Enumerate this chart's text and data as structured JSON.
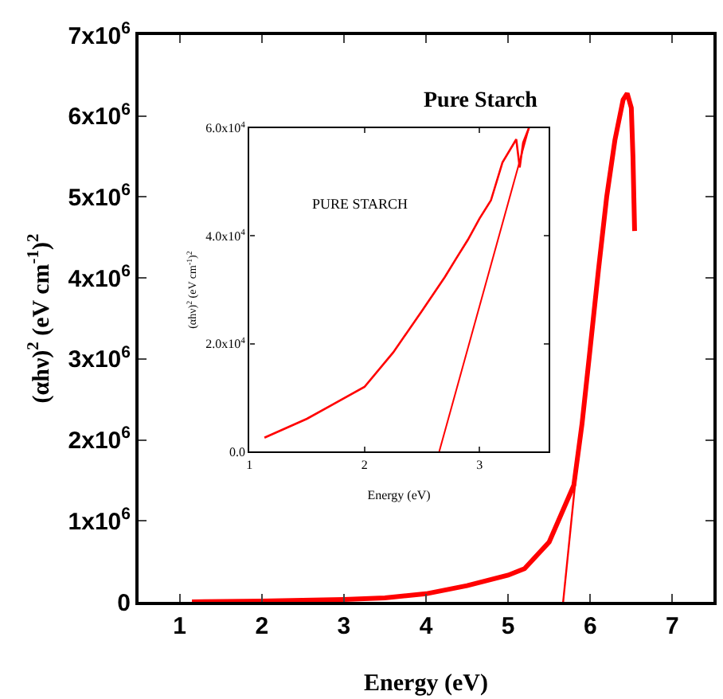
{
  "chart_data": [
    {
      "type": "line",
      "xlabel": "Energy (eV)",
      "ylabel": "(αhν)$^{2}$ (eV cm$^{-1}$)$^{2}$",
      "annotations": [
        "Pure Starch"
      ],
      "xlim": [
        0.5,
        7.5
      ],
      "ylim": [
        0,
        7000000
      ],
      "xticks": [
        1,
        2,
        3,
        4,
        5,
        6,
        7
      ],
      "yticks": [
        0,
        {
          "value": 1000000,
          "label": "1x10$^{6}$"
        },
        {
          "value": 2000000,
          "label": "2x10$^{6}$"
        },
        {
          "value": 3000000,
          "label": "3x10$^{6}$"
        },
        {
          "value": 4000000,
          "label": "4x10$^{6}$"
        },
        {
          "value": 5000000,
          "label": "5x10$^{6}$"
        },
        {
          "value": 6000000,
          "label": "6x10$^{6}$"
        },
        {
          "value": 7000000,
          "label": "7x10$^{6}$"
        }
      ],
      "marker": "none",
      "series": [
        {
          "color": "#ff0000",
          "x": [
            1.15,
            2,
            3,
            3.5,
            4,
            4.5,
            5,
            5.2,
            5.5,
            5.8,
            5.9,
            6.0,
            6.1,
            6.2,
            6.3,
            6.4,
            6.45,
            6.5,
            6.52,
            6.54
          ],
          "values": [
            0,
            10000,
            30000,
            50000,
            100000,
            200000,
            330000,
            410000,
            740000,
            1440000,
            2200000,
            3140000,
            4100000,
            5000000,
            5700000,
            6200000,
            6280000,
            6100000,
            5500000,
            4580000
          ]
        },
        {
          "color": "#ff0000",
          "x": [
            5.67,
            5.85
          ],
          "values": [
            0,
            1800000
          ]
        }
      ]
    },
    {
      "type": "line",
      "xlabel": "Energy (eV)",
      "ylabel": "(αhν)$^{2}$ (eV cm$^{-1}$)$^{2}$",
      "annotations": [
        "PURE STARCH"
      ],
      "xlim": [
        1,
        3.6
      ],
      "ylim": [
        0,
        60000
      ],
      "xticks": [
        1,
        2,
        3
      ],
      "yticks": [
        {
          "value": 0,
          "label": "0.0"
        },
        {
          "value": 20000,
          "label": "2.0x10$^{4}$"
        },
        {
          "value": 40000,
          "label": "4.0x10$^{4}$"
        },
        {
          "value": 60000,
          "label": "6.0x10$^{4}$"
        }
      ],
      "marker": "none",
      "series": [
        {
          "color": "#ff0000",
          "x": [
            1.13,
            1.5,
            2,
            2.25,
            2.5,
            2.7,
            2.8,
            2.9,
            3.0,
            3.1,
            3.2,
            3.32,
            3.35,
            3.38,
            3.43
          ],
          "values": [
            2600,
            6100,
            12000,
            18400,
            26100,
            32400,
            35900,
            39300,
            43200,
            46600,
            53600,
            57900,
            52700,
            57300,
            60000
          ]
        },
        {
          "color": "#ff0000",
          "x": [
            2.65,
            3.43
          ],
          "values": [
            0,
            60000
          ]
        }
      ]
    }
  ]
}
